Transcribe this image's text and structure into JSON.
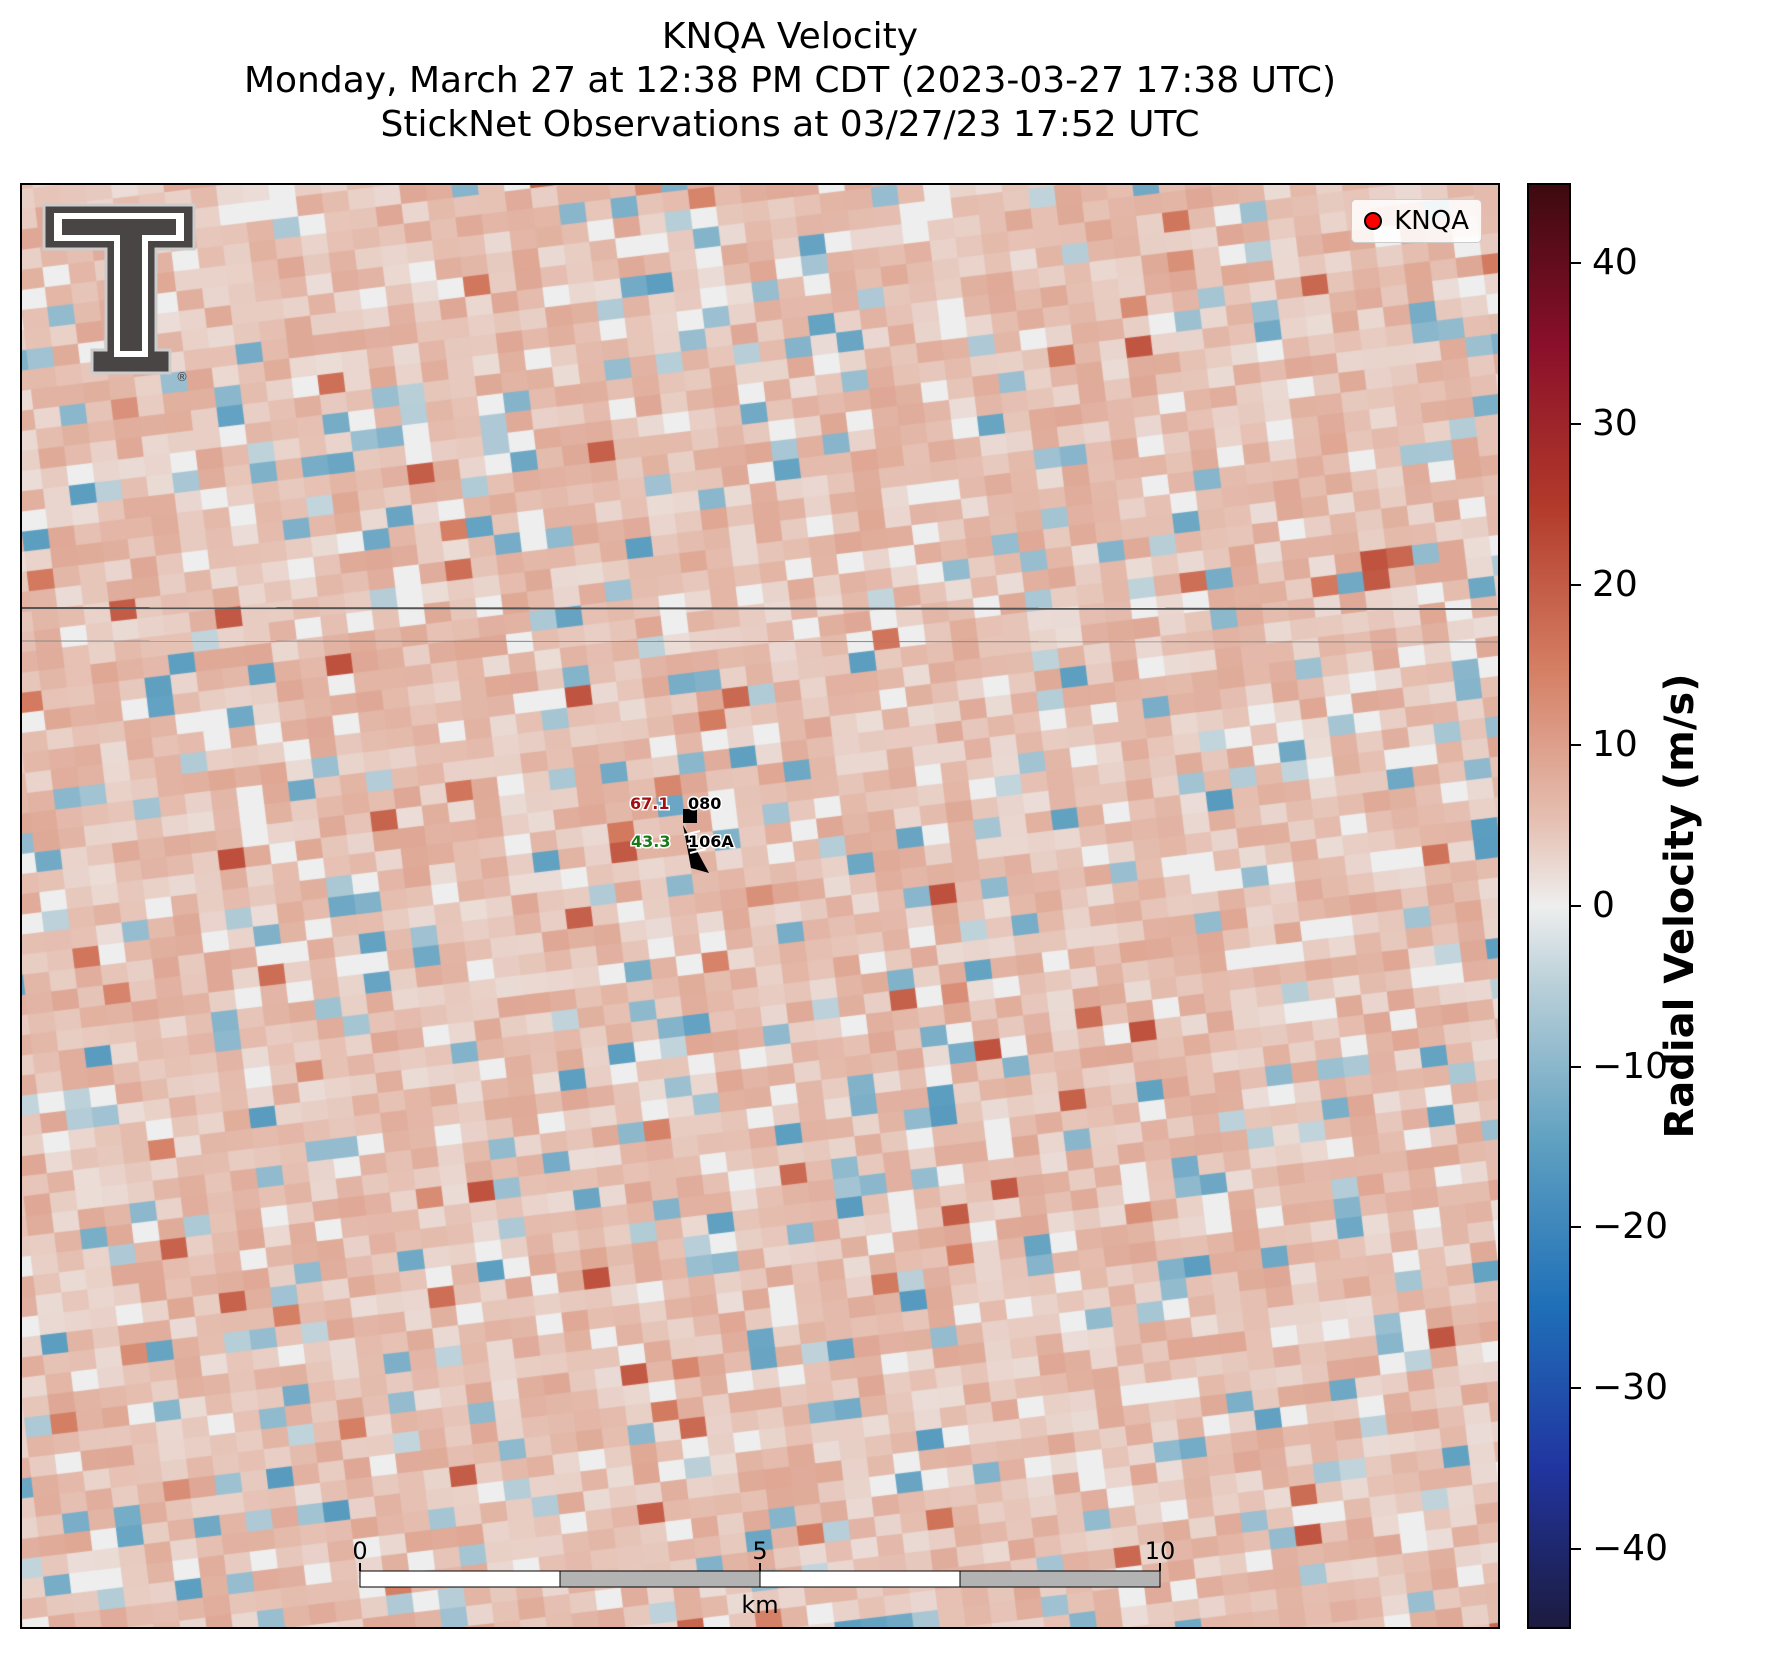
{
  "title": {
    "line1": "KNQA Velocity",
    "line2": "Monday, March 27 at 12:38 PM CDT (2023-03-27 17:38 UTC)",
    "line3": "StickNet Observations at 03/27/23 17:52 UTC"
  },
  "legend": {
    "label": "KNQA",
    "marker_color": "#ff0000"
  },
  "station": {
    "temperature": "67.1",
    "dewpoint": "43.3",
    "pressure_code": "080",
    "station_id": "106A",
    "temperature_color": "#a01010",
    "dewpoint_color": "#1a7a1a"
  },
  "scale_bar": {
    "labels": [
      "0",
      "5",
      "10"
    ],
    "unit": "km"
  },
  "logo": {
    "name": "Texas Tech Double T"
  },
  "chart_data": {
    "type": "heatmap",
    "title": "KNQA Velocity",
    "variable": "Radial Velocity (m/s)",
    "colorbar": {
      "label": "Radial Velocity (m/s)",
      "range": [
        -45,
        45
      ],
      "ticks": [
        40,
        30,
        20,
        10,
        0,
        -10,
        -20,
        -30,
        -40
      ],
      "tick_labels": [
        "40",
        "30",
        "20",
        "10",
        "0",
        "−10",
        "−20",
        "−30",
        "−40"
      ],
      "colormap_stops": [
        {
          "value": -45,
          "color": "#1c1b3f"
        },
        {
          "value": -35,
          "color": "#2135a0"
        },
        {
          "value": -25,
          "color": "#1f6fb8"
        },
        {
          "value": -15,
          "color": "#5d9fc0"
        },
        {
          "value": -5,
          "color": "#b9cfd8"
        },
        {
          "value": 0,
          "color": "#eeeeee"
        },
        {
          "value": 5,
          "color": "#e6c2b5"
        },
        {
          "value": 15,
          "color": "#d47d62"
        },
        {
          "value": 25,
          "color": "#b23a2a"
        },
        {
          "value": 35,
          "color": "#8a0f2a"
        },
        {
          "value": 45,
          "color": "#3d0a10"
        }
      ]
    },
    "field_summary": "Mostly weak positive radial velocities (about 3 to 8 m/s) with scattered near-zero and weak negative (about -5 to -15 m/s) gates; isolated gates near 20 m/s.",
    "sticknet_observation": {
      "station": "106A",
      "temperature_f": 67.1,
      "dewpoint_f": 43.3,
      "pressure_code": "080"
    },
    "scale_bar_km": [
      0,
      5,
      10
    ]
  }
}
